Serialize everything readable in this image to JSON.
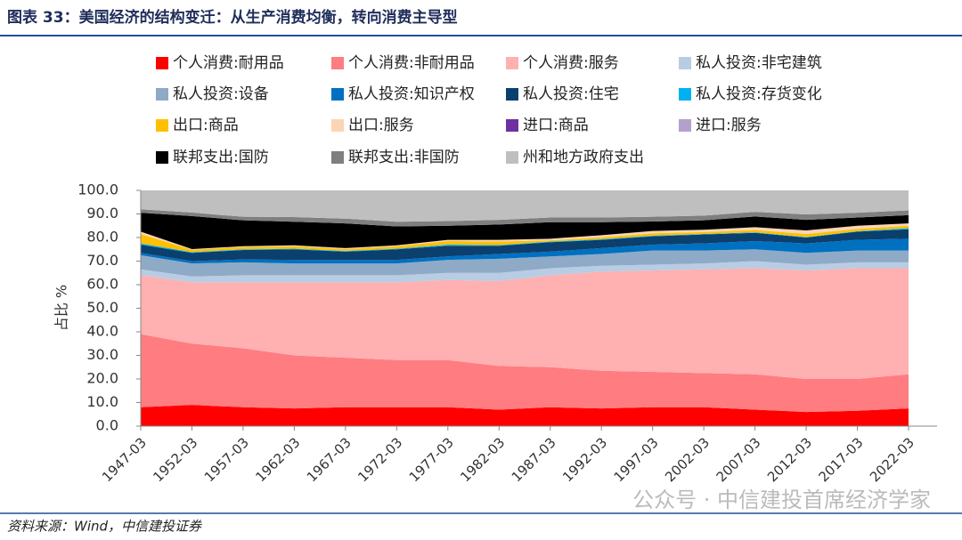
{
  "chart_data": {
    "type": "stacked_area",
    "title": "图表 33：美国经济的结构变迁：从生产消费均衡，转向消费主导型",
    "source": "资料来源：Wind，中信建投证券",
    "watermark": "公众号 · 中信建投首席经济学家",
    "y_label": "占比 %",
    "x": [
      "1947-03",
      "1952-03",
      "1957-03",
      "1962-03",
      "1967-03",
      "1972-03",
      "1977-03",
      "1982-03",
      "1987-03",
      "1992-03",
      "1997-03",
      "2002-03",
      "2007-03",
      "2012-03",
      "2017-03",
      "2022-03"
    ],
    "ylim": [
      0,
      100
    ],
    "yticks": [
      {
        "value": 0,
        "label": "0.0"
      },
      {
        "value": 10,
        "label": "10.0"
      },
      {
        "value": 20,
        "label": "20.0"
      },
      {
        "value": 30,
        "label": "30.0"
      },
      {
        "value": 40,
        "label": "40.0"
      },
      {
        "value": 50,
        "label": "50.0"
      },
      {
        "value": 60,
        "label": "60.0"
      },
      {
        "value": 70,
        "label": "70.0"
      },
      {
        "value": 80,
        "label": "80.0"
      },
      {
        "value": 90,
        "label": "90.0"
      },
      {
        "value": 100,
        "label": "100.0"
      }
    ],
    "series": [
      {
        "name": "个人消费:耐用品",
        "color": "#ff0000",
        "values": [
          8,
          9,
          8,
          7.5,
          8,
          8,
          8,
          7,
          8,
          7.5,
          8,
          8,
          7,
          6,
          6.5,
          7.5
        ]
      },
      {
        "name": "个人消费:非耐用品",
        "color": "#ff7c80",
        "values": [
          31,
          26,
          25,
          22.5,
          21,
          20,
          20,
          18.5,
          17,
          16,
          15,
          14.5,
          15,
          14,
          13.5,
          14.5
        ]
      },
      {
        "name": "个人消费:服务",
        "color": "#ffb0b0",
        "values": [
          25,
          26,
          28,
          31,
          32,
          33,
          34,
          36,
          39,
          42,
          43,
          44,
          45,
          46,
          47,
          45
        ]
      },
      {
        "name": "私人投资:非宅建筑",
        "color": "#b8cce4",
        "values": [
          2.5,
          2.5,
          3,
          3,
          3,
          3,
          3,
          3.5,
          3,
          2.5,
          2.5,
          2.5,
          3,
          2.5,
          2.5,
          2.5
        ]
      },
      {
        "name": "私人投资:设备",
        "color": "#8eaac6",
        "values": [
          6,
          5.5,
          5.5,
          5,
          5,
          5,
          5.5,
          6,
          5,
          5,
          6,
          5.5,
          5,
          5,
          5,
          5
        ]
      },
      {
        "name": "私人投资:知识产权",
        "color": "#0070c0",
        "values": [
          1,
          1,
          1.2,
          1.5,
          1.5,
          1.5,
          1.5,
          2,
          2,
          2.5,
          2.5,
          3,
          3.5,
          4,
          4.5,
          5
        ]
      },
      {
        "name": "私人投资:住宅",
        "color": "#0b3f6e",
        "values": [
          3.5,
          3.5,
          4,
          4.5,
          3.5,
          4.5,
          4.5,
          3.5,
          4,
          3.5,
          3.5,
          3.8,
          3.5,
          2.5,
          3.5,
          4
        ]
      },
      {
        "name": "私人投资:存货变化",
        "color": "#00b0f0",
        "values": [
          0.5,
          0.3,
          0.3,
          0.3,
          0.3,
          0.3,
          0.5,
          0.3,
          0.3,
          0.3,
          0.3,
          0.2,
          0.2,
          0.2,
          0.2,
          0.5
        ]
      },
      {
        "name": "出口:商品",
        "color": "#ffc000",
        "values": [
          4,
          1,
          1,
          1,
          0.8,
          1,
          1.5,
          1.5,
          0.5,
          0.8,
          1,
          0.8,
          1,
          1.3,
          1,
          1
        ]
      },
      {
        "name": "出口:服务",
        "color": "#fcd5b4",
        "values": [
          1,
          0.3,
          0.3,
          0.4,
          0.4,
          0.4,
          0.5,
          0.7,
          0.7,
          0.9,
          1,
          1,
          1.2,
          1.5,
          1.3,
          1
        ]
      },
      {
        "name": "进口:商品",
        "color": "#7030a0",
        "values": [
          0,
          0,
          0,
          0,
          0,
          0,
          0,
          0,
          0,
          0,
          0,
          0,
          0,
          0,
          0,
          0
        ]
      },
      {
        "name": "进口:服务",
        "color": "#b4a0cc",
        "values": [
          0,
          0,
          0,
          0,
          0,
          0,
          0,
          0,
          0,
          0,
          0,
          0,
          0,
          0,
          0,
          0
        ]
      },
      {
        "name": "联邦支出:国防",
        "color": "#000000",
        "values": [
          8,
          14,
          11,
          10,
          10.5,
          8,
          6,
          6.5,
          7,
          5.5,
          4,
          4,
          4.5,
          4.5,
          3.5,
          3.5
        ]
      },
      {
        "name": "联邦支出:非国防",
        "color": "#7f7f7f",
        "values": [
          1.5,
          1.5,
          1.5,
          2,
          2,
          2,
          2,
          2,
          2,
          2,
          2,
          2,
          2,
          2.3,
          2,
          2
        ]
      },
      {
        "name": "州和地方政府支出",
        "color": "#bfbfbf",
        "values": [
          8,
          9.4,
          11.2,
          11.3,
          12,
          13.3,
          13,
          12.5,
          11.5,
          11.5,
          11.2,
          10.7,
          9.1,
          10.2,
          9.5,
          8.5
        ]
      }
    ]
  }
}
